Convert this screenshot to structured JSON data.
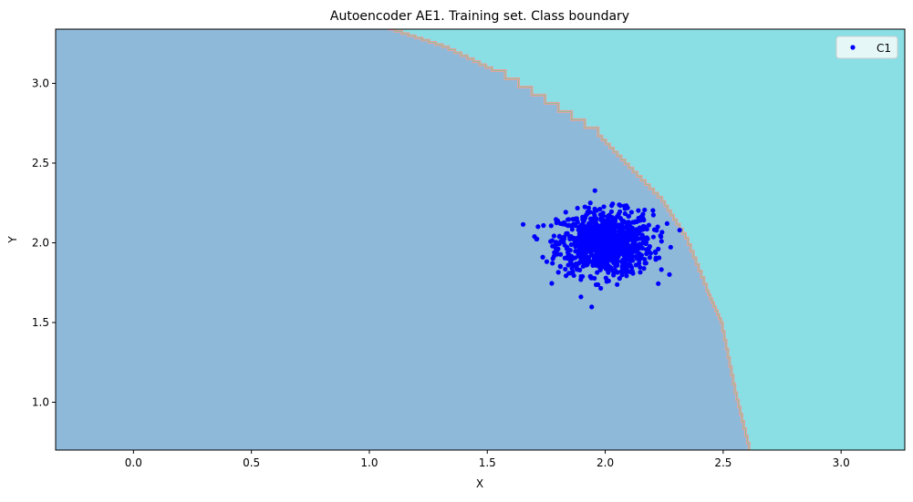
{
  "chart_data": {
    "type": "scatter",
    "title": "Autoencoder AE1. Training set. Class boundary",
    "xlabel": "X",
    "ylabel": "Y",
    "xlim": [
      -0.33,
      3.27
    ],
    "ylim": [
      0.7,
      3.34
    ],
    "xticks": [
      0.0,
      0.5,
      1.0,
      1.5,
      2.0,
      2.5,
      3.0
    ],
    "xtick_labels": [
      "0.0",
      "0.5",
      "1.0",
      "1.5",
      "2.0",
      "2.5",
      "3.0"
    ],
    "yticks": [
      1.0,
      1.5,
      2.0,
      2.5,
      3.0
    ],
    "ytick_labels": [
      "1.0",
      "1.5",
      "2.0",
      "2.5",
      "3.0"
    ],
    "grid": false,
    "legend": {
      "placement": "top-right",
      "entries": [
        "C1"
      ]
    },
    "regions": {
      "inside_color": "#8fb9d8",
      "outside_color": "#8adfe5"
    },
    "boundary": {
      "x": [
        1.08,
        1.31,
        1.52,
        1.97,
        2.1,
        2.24,
        2.34,
        2.43,
        2.49,
        2.55,
        2.61
      ],
      "y": [
        3.34,
        3.23,
        3.08,
        2.67,
        2.47,
        2.26,
        2.03,
        1.7,
        1.5,
        1.06,
        0.7
      ]
    },
    "series": [
      {
        "name": "C1",
        "color": "#0000ff",
        "distribution": "gaussian",
        "center": [
          2.0,
          2.0
        ],
        "std": [
          0.1,
          0.1
        ],
        "n": 1000
      }
    ]
  }
}
